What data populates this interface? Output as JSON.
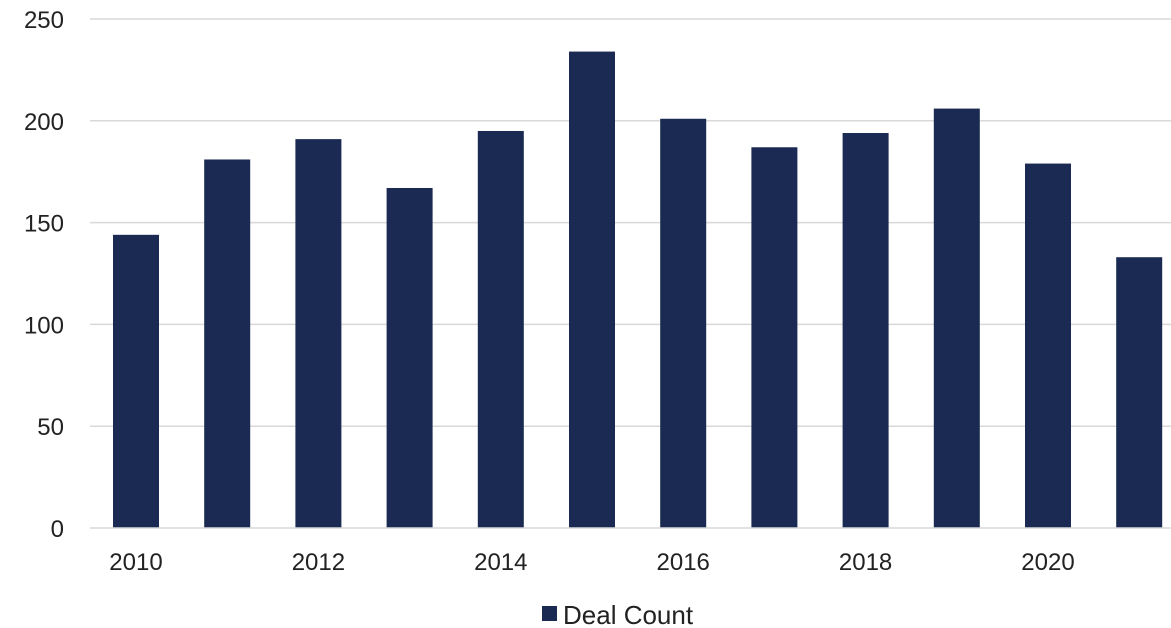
{
  "chart_data": {
    "type": "bar",
    "title": "",
    "xlabel": "",
    "ylabel": "",
    "categories": [
      "2010",
      "2011",
      "2012",
      "2013",
      "2014",
      "2015",
      "2016",
      "2017",
      "2018",
      "2019",
      "2020",
      "2021"
    ],
    "x_tick_labels": [
      "2010",
      "2012",
      "2014",
      "2016",
      "2018",
      "2020"
    ],
    "series": [
      {
        "name": "Deal Count",
        "color": "#1b2a52",
        "values": [
          144,
          181,
          191,
          167,
          195,
          234,
          201,
          187,
          194,
          206,
          179,
          133
        ]
      }
    ],
    "ylim": [
      0,
      250
    ],
    "y_ticks": [
      "0",
      "50",
      "100",
      "150",
      "200",
      "250"
    ],
    "grid": true,
    "grid_color": "#d9d9d9",
    "legend": {
      "placement": "bottom",
      "label": "Deal Count"
    }
  }
}
